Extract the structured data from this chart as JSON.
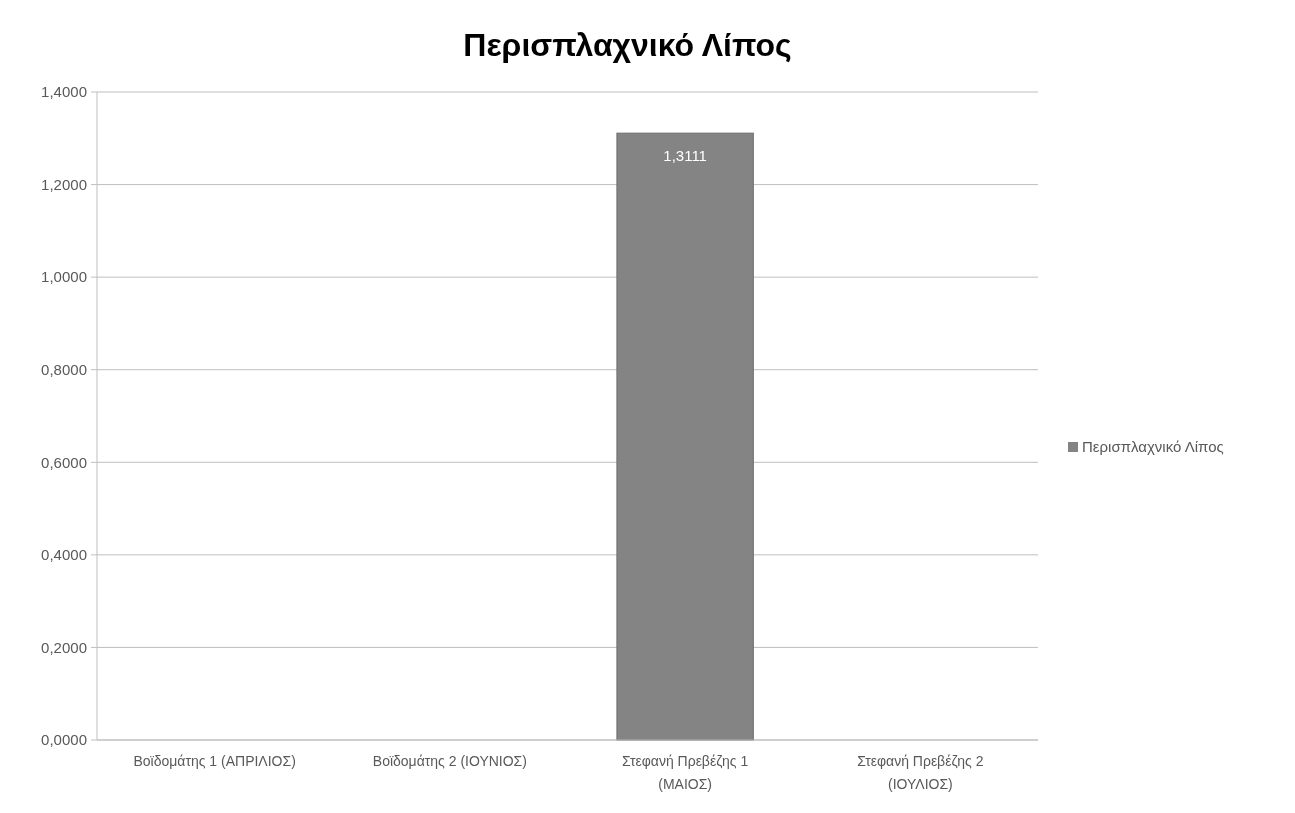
{
  "chart_data": {
    "type": "bar",
    "title": "Περισπλαχνικό Λίπος",
    "categories": [
      "Βοϊδομάτης 1 (ΑΠΡΙΛΙΟΣ)",
      "Βοϊδομάτης 2 (ΙΟΥΝΙΟΣ)",
      "Στεφανή Πρεβέζης 1 (ΜΑΙΟΣ)",
      "Στεφανή Πρεβέζης 2 (ΙΟΥΛΙΟΣ)"
    ],
    "series": [
      {
        "name": "Περισπλαχνικό Λίπος",
        "color": "#848484",
        "values": [
          null,
          null,
          1.3111,
          null
        ],
        "value_labels": [
          null,
          null,
          "1,3111",
          null
        ]
      }
    ],
    "ylim": [
      0,
      1.4
    ],
    "yticks": [
      {
        "value": 0,
        "label": "0,0000"
      },
      {
        "value": 0.2,
        "label": "0,2000"
      },
      {
        "value": 0.4,
        "label": "0,4000"
      },
      {
        "value": 0.6,
        "label": "0,6000"
      },
      {
        "value": 0.8,
        "label": "0,8000"
      },
      {
        "value": 1.0,
        "label": "1,0000"
      },
      {
        "value": 1.2,
        "label": "1,2000"
      },
      {
        "value": 1.4,
        "label": "1,4000"
      }
    ],
    "grid": "y",
    "legend": "right"
  }
}
